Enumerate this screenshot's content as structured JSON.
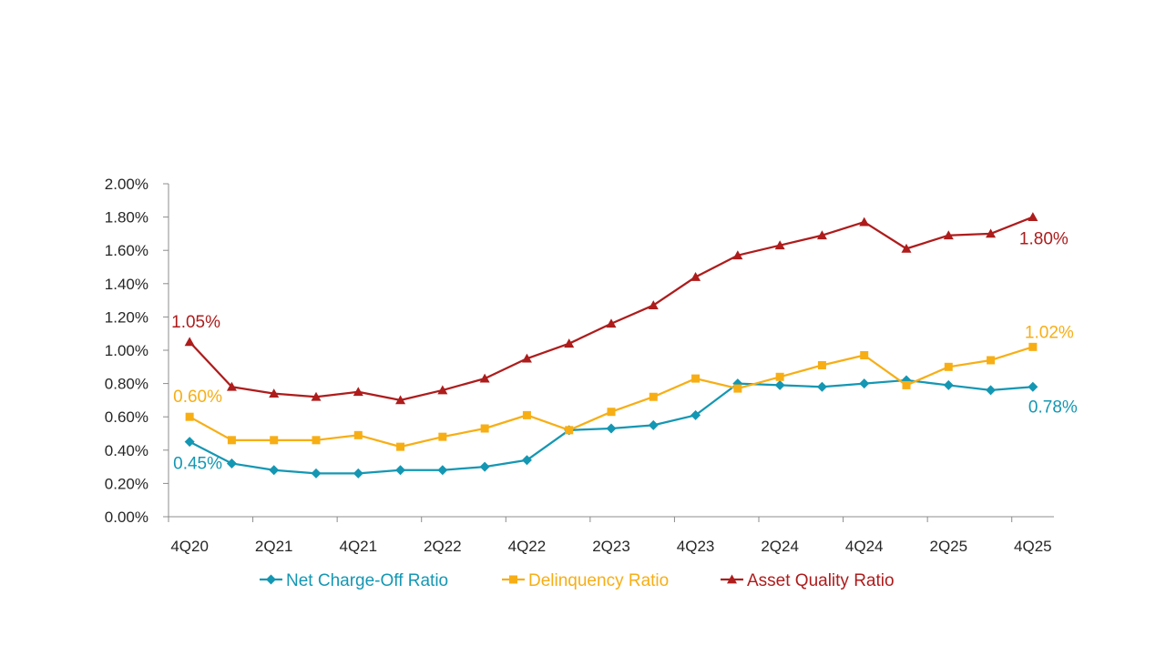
{
  "chart_data": {
    "type": "line",
    "categories": [
      "4Q20",
      "1Q21",
      "2Q21",
      "3Q21",
      "4Q21",
      "1Q22",
      "2Q22",
      "3Q22",
      "4Q22",
      "1Q23",
      "2Q23",
      "3Q23",
      "4Q23",
      "1Q24",
      "2Q24",
      "3Q24",
      "4Q24",
      "1Q25",
      "2Q25",
      "3Q25",
      "4Q25"
    ],
    "tick_labels": [
      "4Q20",
      "2Q21",
      "4Q21",
      "2Q22",
      "4Q22",
      "2Q23",
      "4Q23",
      "2Q24",
      "4Q24",
      "2Q25",
      "4Q25"
    ],
    "ylim": [
      0,
      2.0
    ],
    "y_ticks": [
      "0.00%",
      "0.20%",
      "0.40%",
      "0.60%",
      "0.80%",
      "1.00%",
      "1.20%",
      "1.40%",
      "1.60%",
      "1.80%",
      "2.00%"
    ],
    "y_unit": "%",
    "grid": false,
    "legend_position": "bottom",
    "series": [
      {
        "name": "Net Charge-Off Ratio",
        "color": "#1497B3",
        "marker": "diamond",
        "values": [
          0.45,
          0.32,
          0.28,
          0.26,
          0.26,
          0.28,
          0.28,
          0.3,
          0.34,
          0.52,
          0.53,
          0.55,
          0.61,
          0.8,
          0.79,
          0.78,
          0.8,
          0.82,
          0.79,
          0.76,
          0.78
        ],
        "labels": [
          {
            "index": 0,
            "text": "0.45%",
            "anchor": "start",
            "dx": -18,
            "dy": 30
          },
          {
            "index": 20,
            "text": "0.78%",
            "anchor": "middle",
            "dx": 22,
            "dy": 28
          }
        ]
      },
      {
        "name": "Delinquency Ratio",
        "color": "#F7AE15",
        "marker": "square",
        "values": [
          0.6,
          0.46,
          0.46,
          0.46,
          0.49,
          0.42,
          0.48,
          0.53,
          0.61,
          0.52,
          0.63,
          0.72,
          0.83,
          0.77,
          0.84,
          0.91,
          0.97,
          0.79,
          0.9,
          0.94,
          1.02
        ],
        "labels": [
          {
            "index": 0,
            "text": "0.60%",
            "anchor": "start",
            "dx": -18,
            "dy": -16
          },
          {
            "index": 20,
            "text": "1.02%",
            "anchor": "middle",
            "dx": 18,
            "dy": -10
          }
        ]
      },
      {
        "name": "Asset Quality Ratio",
        "color": "#AE1C1C",
        "marker": "triangle",
        "values": [
          1.05,
          0.78,
          0.74,
          0.72,
          0.75,
          0.7,
          0.76,
          0.83,
          0.95,
          1.04,
          1.16,
          1.27,
          1.44,
          1.57,
          1.63,
          1.69,
          1.77,
          1.61,
          1.69,
          1.7,
          1.8
        ],
        "labels": [
          {
            "index": 0,
            "text": "1.05%",
            "anchor": "start",
            "dx": -20,
            "dy": -16
          },
          {
            "index": 20,
            "text": "1.80%",
            "anchor": "middle",
            "dx": 12,
            "dy": 30
          }
        ]
      }
    ]
  }
}
